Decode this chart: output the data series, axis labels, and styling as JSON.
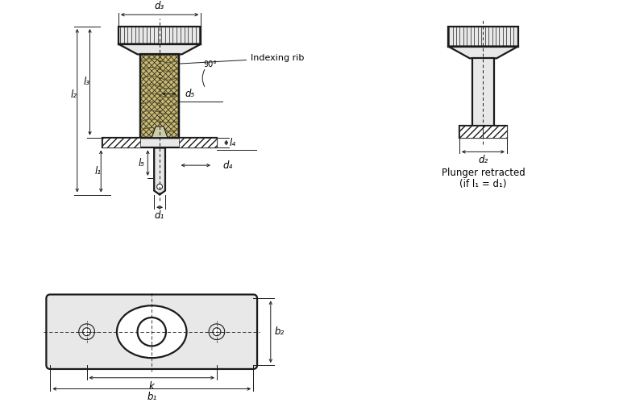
{
  "bg_color": "#ffffff",
  "line_color": "#1a1a1a",
  "fill_light": "#e8e8e8",
  "fill_body": "#c8b870",
  "font_size_label": 8.5,
  "font_size_annot": 8,
  "labels": {
    "d1": "d₁",
    "d2": "d₂",
    "d3": "d₃",
    "d4": "d₄",
    "d5": "d₅",
    "l1": "l₁",
    "l2": "l₂",
    "l3": "l₃",
    "l4": "l₄",
    "l5": "l₅",
    "b1": "b₁",
    "b2": "b₂",
    "k": "k",
    "indexing_rib": "Indexing rib",
    "angle_90": "90°",
    "plunger_text1": "Plunger retracted",
    "plunger_text2": "(if l₁ = d₁)"
  }
}
